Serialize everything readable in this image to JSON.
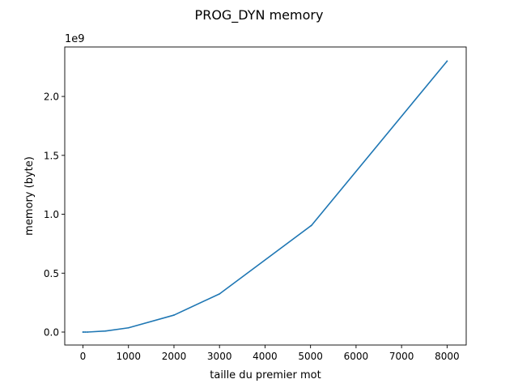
{
  "chart_data": {
    "type": "line",
    "title": "PROG_DYN memory",
    "xlabel": "taille du premier mot",
    "ylabel": "memory (byte)",
    "offset_label": "1e9",
    "xlim": [
      -400,
      8420
    ],
    "ylim": [
      -0.11,
      2.42
    ],
    "x_ticks": [
      0,
      1000,
      2000,
      3000,
      4000,
      5000,
      6000,
      7000,
      8000
    ],
    "y_ticks": [
      0.0,
      0.5,
      1.0,
      1.5,
      2.0
    ],
    "x_tick_labels": [
      "0",
      "1000",
      "2000",
      "3000",
      "4000",
      "5000",
      "6000",
      "7000",
      "8000"
    ],
    "y_tick_labels": [
      "0.0",
      "0.5",
      "1.0",
      "1.5",
      "2.0"
    ],
    "grid": false,
    "legend": "none",
    "series": [
      {
        "color": "#1f77b4",
        "x": [
          0,
          10,
          50,
          100,
          500,
          1000,
          2000,
          3000,
          5000,
          5020,
          8000
        ],
        "y": [
          0.0,
          0.0,
          0.0,
          0.0,
          0.009,
          0.036,
          0.144,
          0.324,
          0.9,
          0.905,
          2.3
        ]
      }
    ]
  }
}
